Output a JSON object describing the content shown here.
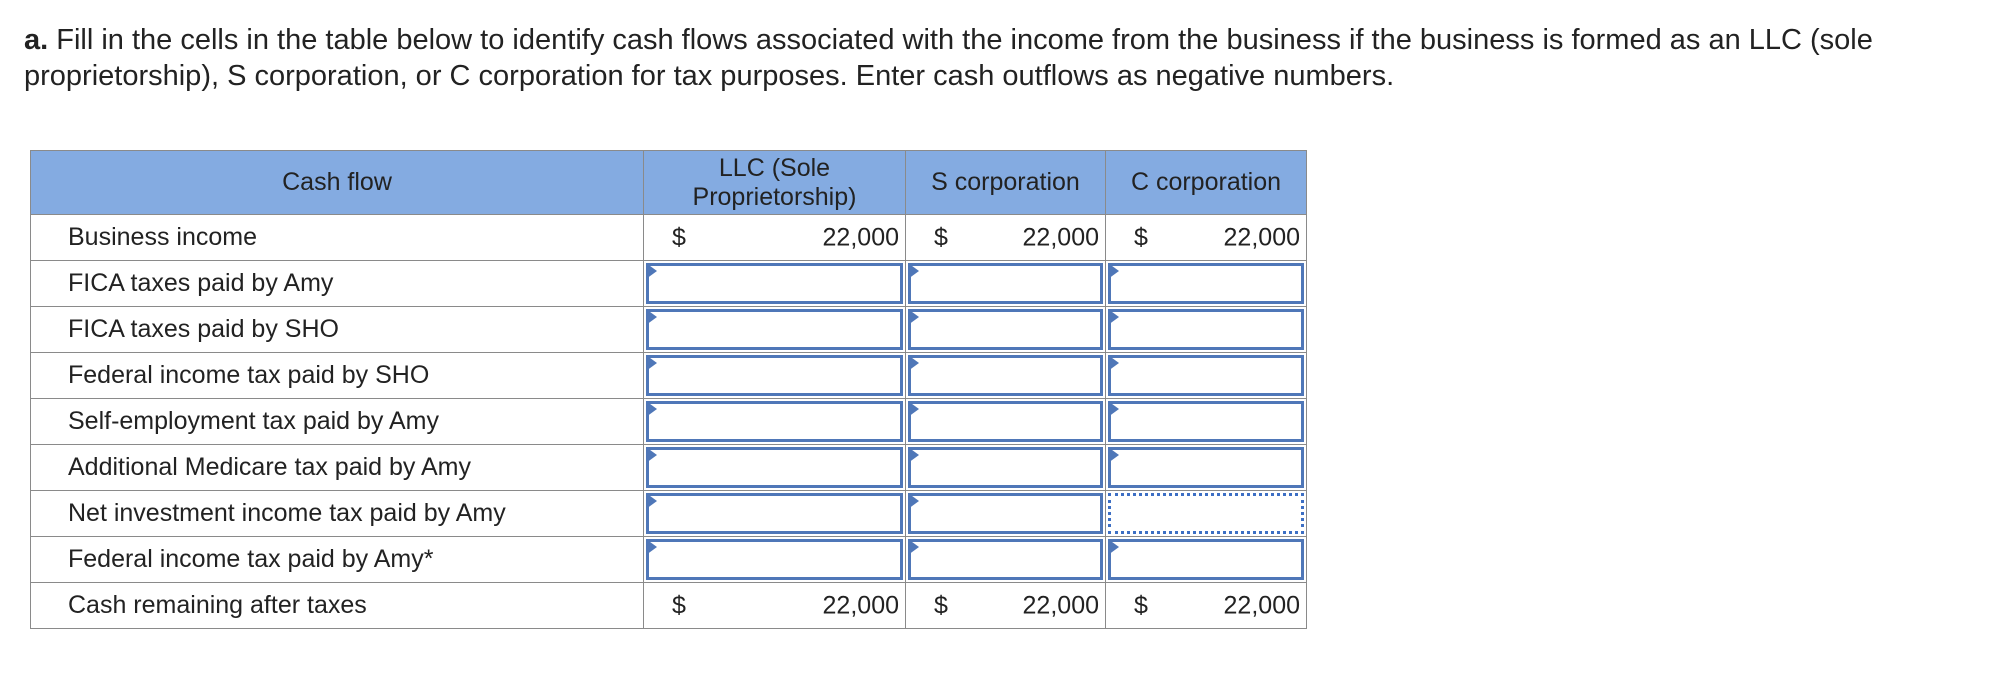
{
  "prompt": {
    "bold_lead": "a.",
    "text": " Fill in the cells in the table below to identify cash flows associated with the income from the business if the business is formed as an LLC (sole proprietorship), S corporation, or C corporation for tax purposes. Enter cash outflows as negative numbers."
  },
  "table": {
    "headers": [
      "Cash flow",
      "LLC (Sole Proprietorship)",
      "S corporation",
      "C corporation"
    ],
    "rows": [
      {
        "label": "Business income",
        "cells": [
          {
            "currency": "$",
            "value": "22,000"
          },
          {
            "currency": "$",
            "value": "22,000"
          },
          {
            "currency": "$",
            "value": "22,000"
          }
        ]
      },
      {
        "label": "FICA taxes paid by Amy",
        "cells": [
          {
            "value": ""
          },
          {
            "value": ""
          },
          {
            "value": ""
          }
        ]
      },
      {
        "label": "FICA taxes paid by SHO",
        "cells": [
          {
            "value": ""
          },
          {
            "value": ""
          },
          {
            "value": ""
          }
        ]
      },
      {
        "label": "Federal income tax paid by SHO",
        "cells": [
          {
            "value": ""
          },
          {
            "value": ""
          },
          {
            "value": ""
          }
        ]
      },
      {
        "label": "Self-employment tax paid by Amy",
        "cells": [
          {
            "value": ""
          },
          {
            "value": ""
          },
          {
            "value": ""
          }
        ]
      },
      {
        "label": "Additional Medicare tax paid by Amy",
        "cells": [
          {
            "value": ""
          },
          {
            "value": ""
          },
          {
            "value": ""
          }
        ]
      },
      {
        "label": "Net investment income tax paid by Amy",
        "cells": [
          {
            "value": ""
          },
          {
            "value": ""
          },
          {
            "value": ""
          }
        ]
      },
      {
        "label": "Federal income tax paid by Amy*",
        "cells": [
          {
            "value": ""
          },
          {
            "value": ""
          },
          {
            "value": ""
          }
        ]
      },
      {
        "label": "Cash remaining after taxes",
        "cells": [
          {
            "currency": "$",
            "value": "22,000"
          },
          {
            "currency": "$",
            "value": "22,000"
          },
          {
            "currency": "$",
            "value": "22,000"
          }
        ]
      }
    ]
  },
  "colors": {
    "header_bg": "#84abe1",
    "input_border": "#4f77b8"
  }
}
